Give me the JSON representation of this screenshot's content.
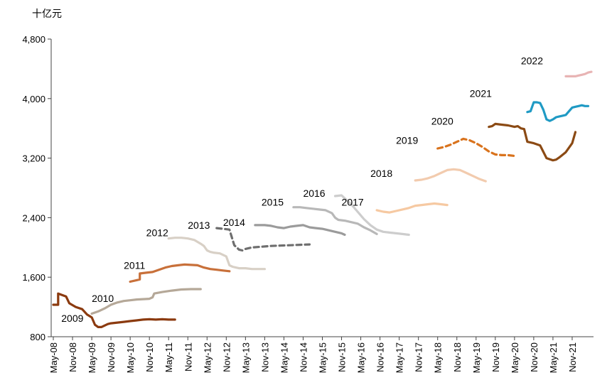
{
  "chart_data": {
    "type": "line",
    "title": "",
    "ylabel": "十亿元",
    "xlabel": "",
    "ylim": [
      800,
      4800
    ],
    "yticks": [
      800,
      1600,
      2400,
      3200,
      4000,
      4800
    ],
    "ytick_labels": [
      "800",
      "1,600",
      "2,400",
      "3,200",
      "4,000",
      "4,800"
    ],
    "x_start": "May-08",
    "x_end": "Nov-21",
    "xticks": [
      0,
      6,
      12,
      18,
      24,
      30,
      36,
      42,
      48,
      54,
      60,
      66,
      72,
      78,
      84,
      90,
      96,
      102,
      108,
      114,
      120,
      126,
      132,
      138,
      144,
      150,
      156,
      162
    ],
    "xtick_labels": [
      "May-08",
      "Nov-08",
      "May-09",
      "Nov-09",
      "May-10",
      "Nov-10",
      "May-11",
      "Nov-11",
      "May-12",
      "Nov-12",
      "May-13",
      "Nov-13",
      "May-14",
      "Nov-14",
      "May-15",
      "Nov-15",
      "May-16",
      "Nov-16",
      "May-17",
      "Nov-17",
      "May-18",
      "Nov-18",
      "May-19",
      "Nov-19",
      "May-20",
      "Nov-20",
      "May-21",
      "Nov-21"
    ],
    "x_unit": "months since May-08",
    "grid": false,
    "legend": "none (series labelled inline by year)",
    "series": [
      {
        "name": "2009",
        "color": "#8B3A0F",
        "style": "solid",
        "x": [
          0,
          1.5,
          1.5,
          4,
          5,
          7,
          9,
          10.5,
          12,
          13,
          14,
          15,
          16,
          17,
          18,
          20,
          22,
          24,
          26,
          28,
          30,
          32,
          34,
          36,
          38
        ],
        "y": [
          1230,
          1230,
          1380,
          1340,
          1250,
          1200,
          1170,
          1100,
          1060,
          960,
          930,
          930,
          950,
          970,
          980,
          990,
          1000,
          1010,
          1020,
          1030,
          1035,
          1030,
          1035,
          1030,
          1030
        ]
      },
      {
        "name": "2010",
        "color": "#B5A898",
        "style": "solid",
        "x": [
          12,
          14,
          16,
          18,
          20,
          22,
          24,
          26,
          28,
          30,
          31,
          31.5,
          34,
          37,
          40,
          43,
          46
        ],
        "y": [
          1110,
          1140,
          1180,
          1230,
          1260,
          1280,
          1290,
          1300,
          1305,
          1310,
          1330,
          1380,
          1400,
          1420,
          1435,
          1440,
          1440
        ]
      },
      {
        "name": "2011",
        "color": "#C8703A",
        "style": "solid",
        "x": [
          24,
          26,
          27,
          27,
          29,
          31,
          33,
          35,
          37,
          39,
          41,
          43,
          45,
          47,
          49,
          51,
          53,
          55
        ],
        "y": [
          1540,
          1560,
          1570,
          1650,
          1660,
          1670,
          1700,
          1730,
          1750,
          1760,
          1770,
          1765,
          1760,
          1730,
          1710,
          1700,
          1690,
          1680
        ]
      },
      {
        "name": "2012",
        "color": "#D8D0C6",
        "style": "solid",
        "x": [
          36,
          38,
          40,
          42,
          44,
          46,
          47,
          48,
          49,
          50,
          52,
          54,
          55,
          56,
          57,
          58,
          60,
          62,
          64,
          66
        ],
        "y": [
          2120,
          2130,
          2130,
          2120,
          2100,
          2050,
          2020,
          1960,
          1940,
          1930,
          1920,
          1880,
          1760,
          1740,
          1730,
          1720,
          1720,
          1710,
          1710,
          1710
        ]
      },
      {
        "name": "2013",
        "color": "#6E6E6E",
        "style": "dashed",
        "x": [
          51,
          53,
          55,
          56,
          56.5,
          58,
          59,
          60,
          62,
          65,
          68,
          71,
          74,
          77,
          80
        ],
        "y": [
          2260,
          2250,
          2240,
          2100,
          2030,
          1970,
          1960,
          1980,
          2000,
          2010,
          2020,
          2025,
          2030,
          2035,
          2040
        ]
      },
      {
        "name": "2014",
        "color": "#9B9B9B",
        "style": "solid",
        "x": [
          63,
          66,
          68,
          70,
          72,
          74,
          76,
          78,
          80,
          82,
          84,
          86,
          88,
          90,
          91
        ],
        "y": [
          2300,
          2300,
          2290,
          2270,
          2260,
          2280,
          2290,
          2300,
          2270,
          2260,
          2250,
          2230,
          2210,
          2190,
          2170
        ]
      },
      {
        "name": "2015",
        "color": "#B8B8B8",
        "style": "solid",
        "x": [
          75,
          77,
          79,
          81,
          83,
          85,
          87,
          88,
          89,
          91,
          93,
          95,
          97,
          99,
          101
        ],
        "y": [
          2540,
          2540,
          2530,
          2520,
          2510,
          2500,
          2460,
          2400,
          2370,
          2360,
          2340,
          2320,
          2270,
          2230,
          2180
        ]
      },
      {
        "name": "2016",
        "color": "#CDCDCD",
        "style": "solid",
        "x": [
          88,
          90,
          91,
          93,
          95,
          97,
          99,
          101,
          103,
          105,
          107,
          109,
          111
        ],
        "y": [
          2690,
          2700,
          2660,
          2580,
          2480,
          2380,
          2300,
          2240,
          2210,
          2200,
          2190,
          2180,
          2170
        ]
      },
      {
        "name": "2017",
        "color": "#F6C9A2",
        "style": "solid",
        "x": [
          101,
          103,
          105,
          107,
          109,
          111,
          113,
          115,
          117,
          119,
          121,
          123
        ],
        "y": [
          2500,
          2480,
          2470,
          2490,
          2510,
          2530,
          2560,
          2570,
          2580,
          2590,
          2580,
          2570
        ]
      },
      {
        "name": "2018",
        "color": "#F2CBAE",
        "style": "solid",
        "x": [
          113,
          115,
          117,
          119,
          121,
          123,
          125,
          127,
          129,
          131,
          133,
          135
        ],
        "y": [
          2900,
          2910,
          2930,
          2960,
          3000,
          3040,
          3050,
          3040,
          3000,
          2960,
          2920,
          2890
        ]
      },
      {
        "name": "2019",
        "color": "#D9731D",
        "style": "dashed",
        "x": [
          120,
          122,
          124,
          126,
          128,
          130,
          132,
          134,
          136,
          138,
          140,
          142,
          144
        ],
        "y": [
          3330,
          3350,
          3380,
          3420,
          3460,
          3440,
          3400,
          3350,
          3290,
          3250,
          3240,
          3240,
          3230
        ]
      },
      {
        "name": "2020",
        "color": "#8B4A14",
        "style": "solid",
        "x": [
          136,
          137,
          138,
          140,
          142,
          144,
          145,
          146,
          147,
          148,
          150,
          152,
          154,
          156,
          157,
          158,
          160,
          162,
          163
        ],
        "y": [
          3620,
          3630,
          3660,
          3650,
          3640,
          3620,
          3630,
          3600,
          3590,
          3420,
          3400,
          3370,
          3200,
          3170,
          3180,
          3210,
          3280,
          3400,
          3550
        ]
      },
      {
        "name": "2021",
        "color": "#1F9AC4",
        "style": "solid",
        "x": [
          148,
          149,
          150,
          151,
          152,
          153,
          154,
          155,
          156,
          157,
          158,
          159,
          160,
          161,
          162,
          163,
          164,
          165,
          166,
          167
        ],
        "y": [
          3820,
          3830,
          3950,
          3950,
          3940,
          3850,
          3720,
          3700,
          3720,
          3750,
          3760,
          3770,
          3780,
          3830,
          3880,
          3890,
          3900,
          3910,
          3900,
          3900
        ]
      },
      {
        "name": "2022",
        "color": "#E8B4B4",
        "style": "solid",
        "x": [
          160,
          161,
          162,
          163,
          164,
          165,
          166,
          167,
          168
        ],
        "y": [
          4300,
          4300,
          4300,
          4300,
          4310,
          4320,
          4330,
          4350,
          4360
        ]
      }
    ],
    "annotations": [
      {
        "text": "2009",
        "x": 2.5,
        "y": 1000
      },
      {
        "text": "2010",
        "x": 12,
        "y": 1270
      },
      {
        "text": "2011",
        "x": 22,
        "y": 1710
      },
      {
        "text": "2012",
        "x": 29,
        "y": 2150
      },
      {
        "text": "2013",
        "x": 42,
        "y": 2250
      },
      {
        "text": "2014",
        "x": 53,
        "y": 2290
      },
      {
        "text": "2015",
        "x": 65,
        "y": 2560
      },
      {
        "text": "2016",
        "x": 78,
        "y": 2680
      },
      {
        "text": "2017",
        "x": 90,
        "y": 2560
      },
      {
        "text": "2018",
        "x": 99,
        "y": 2950
      },
      {
        "text": "2019",
        "x": 107,
        "y": 3390
      },
      {
        "text": "2020",
        "x": 118,
        "y": 3650
      },
      {
        "text": "2021",
        "x": 130,
        "y": 4020
      },
      {
        "text": "2022",
        "x": 146,
        "y": 4460
      }
    ]
  }
}
